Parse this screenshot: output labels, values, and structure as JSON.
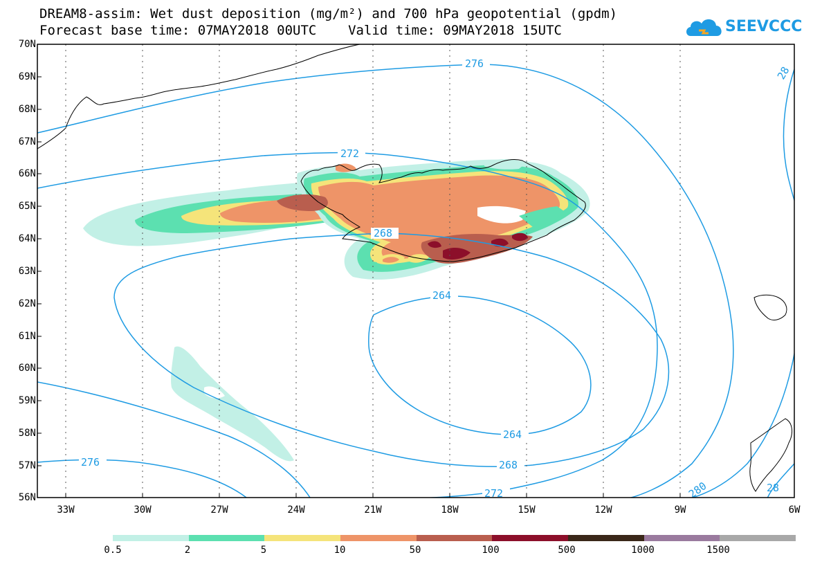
{
  "title_line1": "DREAM8-assim: Wet dust deposition (mg/m²) and 700 hPa geopotential (gpdm)",
  "title_line2": "Forecast base time: 07MAY2018 00UTC    Valid time: 09MAY2018 15UTC",
  "logo_text": "SEEVCCC",
  "lat_labels": [
    "70N",
    "69N",
    "68N",
    "67N",
    "66N",
    "65N",
    "64N",
    "63N",
    "62N",
    "61N",
    "60N",
    "59N",
    "58N",
    "57N",
    "56N"
  ],
  "lon_labels": [
    "33W",
    "30W",
    "27W",
    "24W",
    "21W",
    "18W",
    "15W",
    "12W",
    "9W",
    "6W"
  ],
  "contour_labels": {
    "c276_top": "276",
    "c272_top": "272",
    "c268_mid": "268",
    "c264_top": "264",
    "c264_bot": "264",
    "c268_bot": "268",
    "c272_bot": "272",
    "c276_left": "276",
    "c280": "280",
    "c28_right": "28",
    "c28_topright": "28"
  },
  "colorbar": {
    "colors": [
      "#C2F0E6",
      "#5CE0B0",
      "#F5E47A",
      "#EE9468",
      "#B95E4E",
      "#8C0F2A",
      "#3A2719",
      "#9A7A9E",
      "#A8A8A8"
    ],
    "labels": [
      "0.5",
      "2",
      "5",
      "10",
      "50",
      "100",
      "500",
      "1000",
      "1500"
    ]
  },
  "contour_color": "#1E9BE3"
}
